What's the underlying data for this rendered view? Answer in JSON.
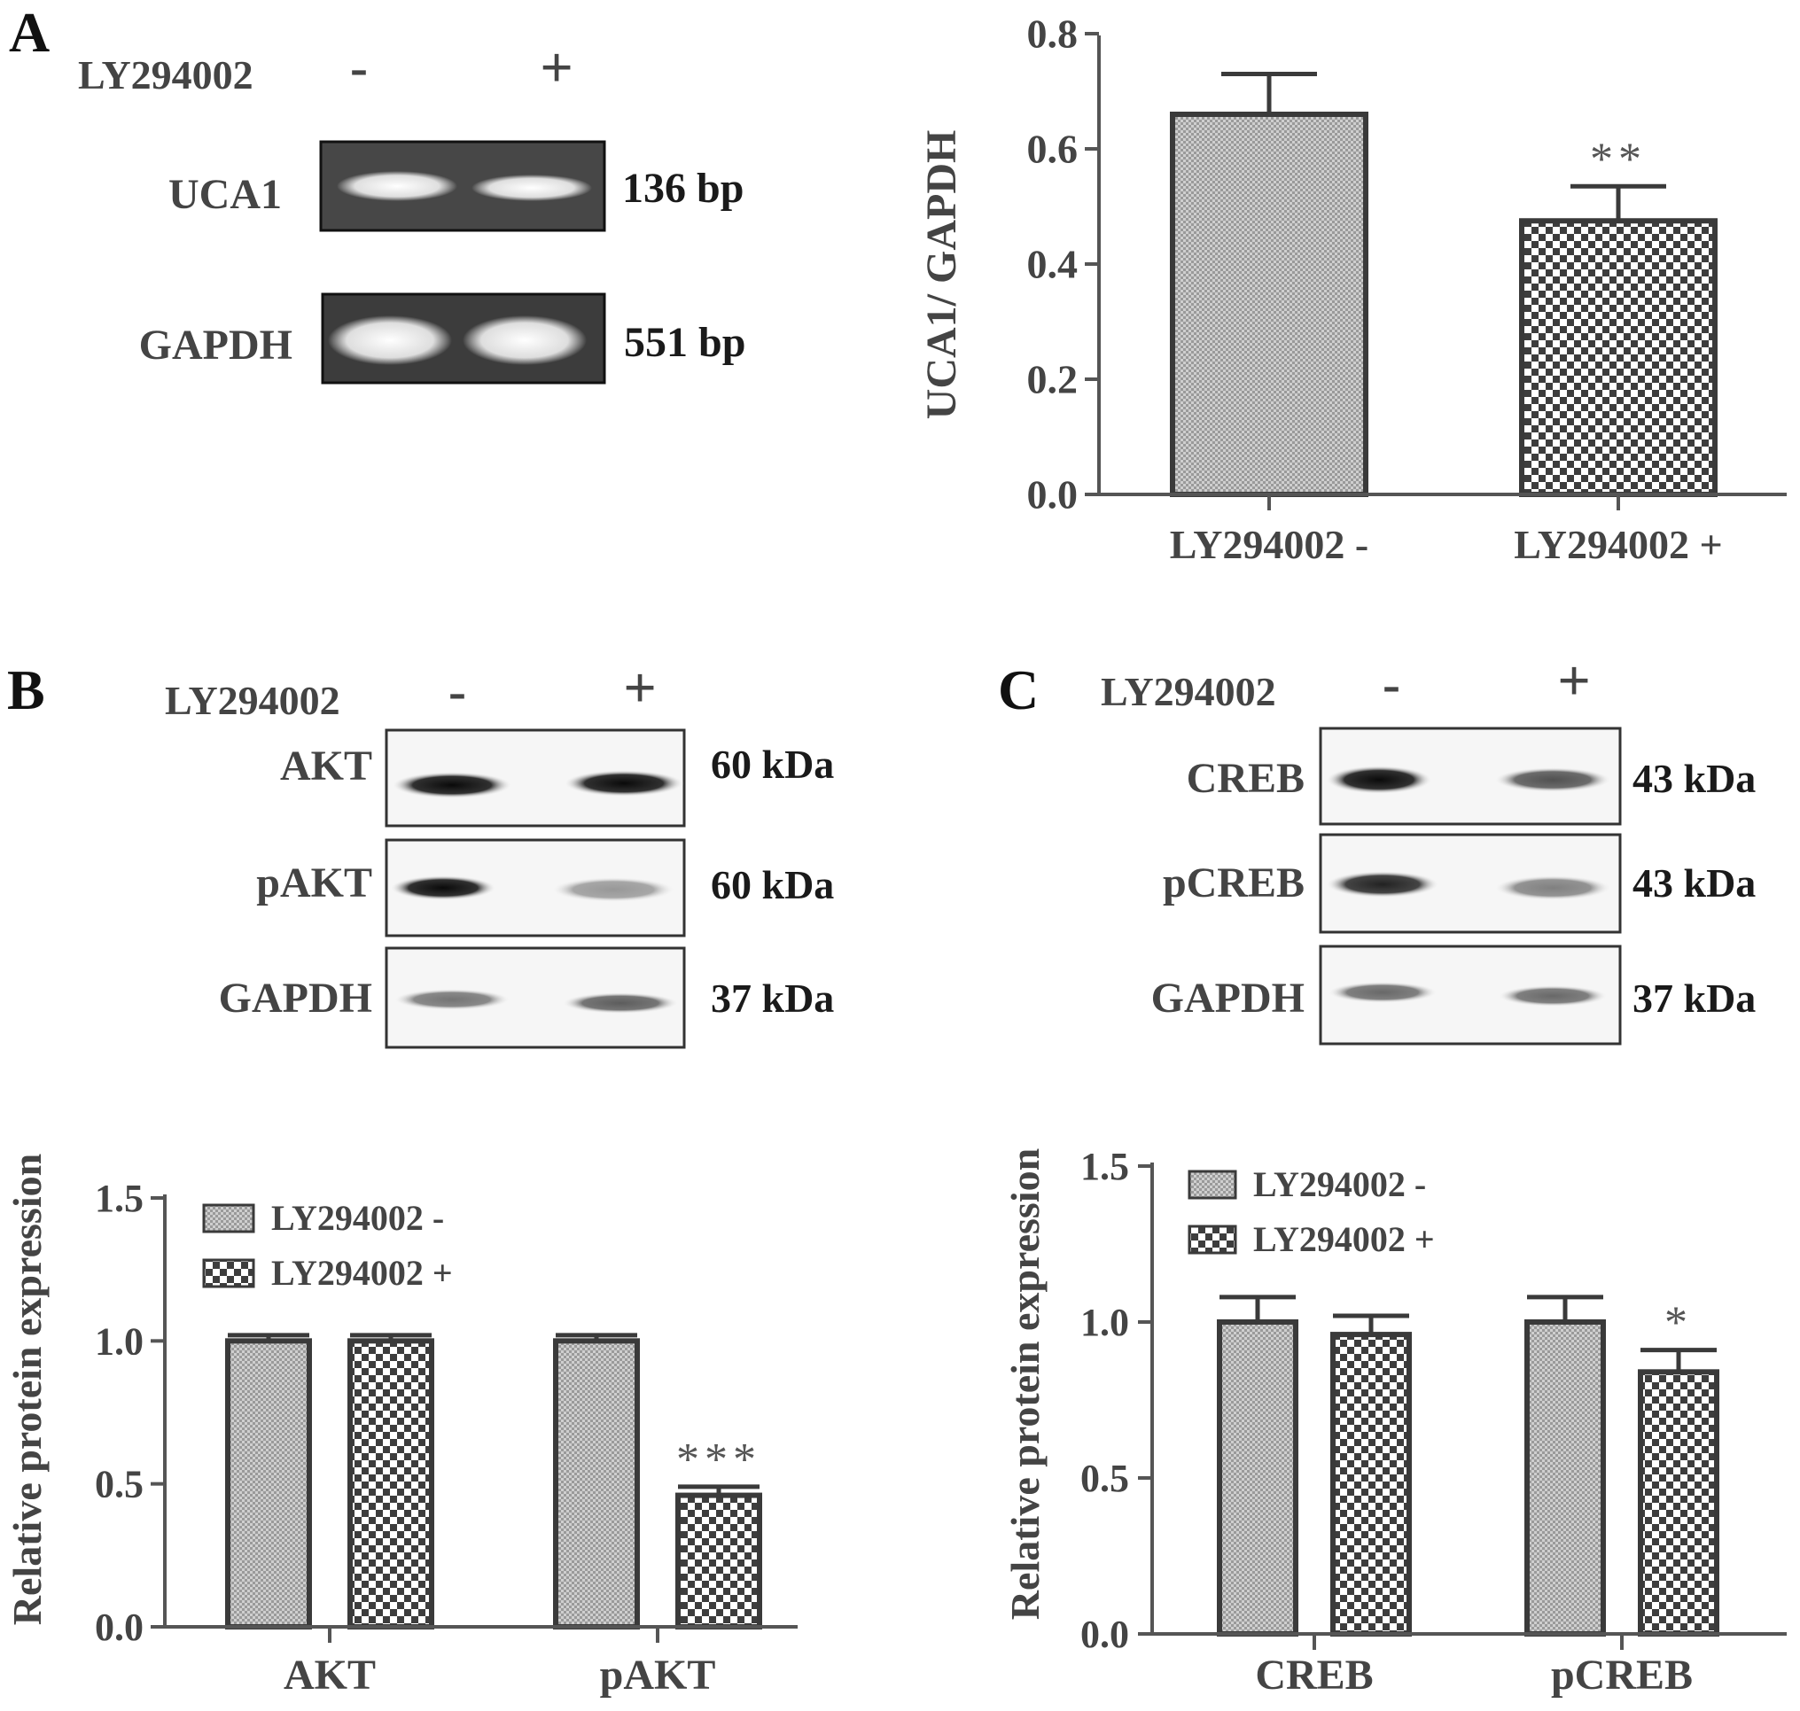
{
  "panels": {
    "A": {
      "letter": "A",
      "gel": {
        "treatment_label": "LY294002",
        "minus": "-",
        "plus": "+",
        "rows": [
          {
            "label": "UCA1",
            "size": "136 bp",
            "band_intensity": [
              0.55,
              0.4
            ]
          },
          {
            "label": "GAPDH",
            "size": "551 bp",
            "band_intensity": [
              1.0,
              1.0
            ]
          }
        ]
      }
    },
    "B": {
      "letter": "B",
      "blot": {
        "treatment_label": "LY294002",
        "minus": "-",
        "plus": "+",
        "rows": [
          {
            "label": "AKT",
            "size": "60  kDa",
            "band_intensity": [
              1.0,
              1.0
            ]
          },
          {
            "label": "pAKT",
            "size": "60  kDa",
            "band_intensity": [
              0.95,
              0.35
            ]
          },
          {
            "label": "GAPDH",
            "size": "37  kDa",
            "band_intensity": [
              0.55,
              0.6
            ]
          }
        ]
      }
    },
    "C": {
      "letter": "C",
      "blot": {
        "treatment_label": "LY294002",
        "minus": "-",
        "plus": "+",
        "rows": [
          {
            "label": "CREB",
            "size": "43  kDa",
            "band_intensity": [
              1.0,
              0.7
            ]
          },
          {
            "label": "pCREB",
            "size": "43  kDa",
            "band_intensity": [
              0.9,
              0.5
            ]
          },
          {
            "label": "GAPDH",
            "size": "37  kDa",
            "band_intensity": [
              0.6,
              0.6
            ]
          }
        ]
      }
    }
  },
  "chart_data": [
    {
      "id": "A-chart",
      "type": "bar",
      "ylabel": "UCA1/ GAPDH",
      "xlabel": "",
      "ylim": [
        0,
        0.8
      ],
      "yticks": [
        "0.0",
        "0.2",
        "0.4",
        "0.6",
        "0.8"
      ],
      "categories": [
        "LY294002 -",
        "LY294002 +"
      ],
      "values": [
        0.66,
        0.475
      ],
      "errors": [
        0.07,
        0.06
      ],
      "patterns": [
        "fine",
        "checker"
      ],
      "significance": [
        "",
        "**"
      ]
    },
    {
      "id": "B-chart",
      "type": "bar",
      "ylabel": "Relative protein expression",
      "xlabel": "",
      "ylim": [
        0,
        1.5
      ],
      "yticks": [
        "0.0",
        "0.5",
        "1.0",
        "1.5"
      ],
      "categories": [
        "AKT",
        "pAKT"
      ],
      "series": [
        {
          "name": "LY294002 -",
          "values": [
            1.0,
            1.0
          ],
          "errors": [
            0.02,
            0.02
          ],
          "pattern": "fine",
          "significance": [
            "",
            ""
          ]
        },
        {
          "name": "LY294002 +",
          "values": [
            1.0,
            0.46
          ],
          "errors": [
            0.02,
            0.03
          ],
          "pattern": "checker",
          "significance": [
            "",
            "***"
          ]
        }
      ],
      "legend": "top-left"
    },
    {
      "id": "C-chart",
      "type": "bar",
      "ylabel": "Relative protein expression",
      "xlabel": "",
      "ylim": [
        0,
        1.5
      ],
      "yticks": [
        "0.0",
        "0.5",
        "1.0",
        "1.5"
      ],
      "categories": [
        "CREB",
        "pCREB"
      ],
      "series": [
        {
          "name": "LY294002 -",
          "values": [
            1.0,
            1.0
          ],
          "errors": [
            0.08,
            0.08
          ],
          "pattern": "fine",
          "significance": [
            "",
            ""
          ]
        },
        {
          "name": "LY294002 +",
          "values": [
            0.96,
            0.84
          ],
          "errors": [
            0.06,
            0.07
          ],
          "pattern": "checker",
          "significance": [
            "",
            "*"
          ]
        }
      ],
      "legend": "top-left"
    }
  ]
}
